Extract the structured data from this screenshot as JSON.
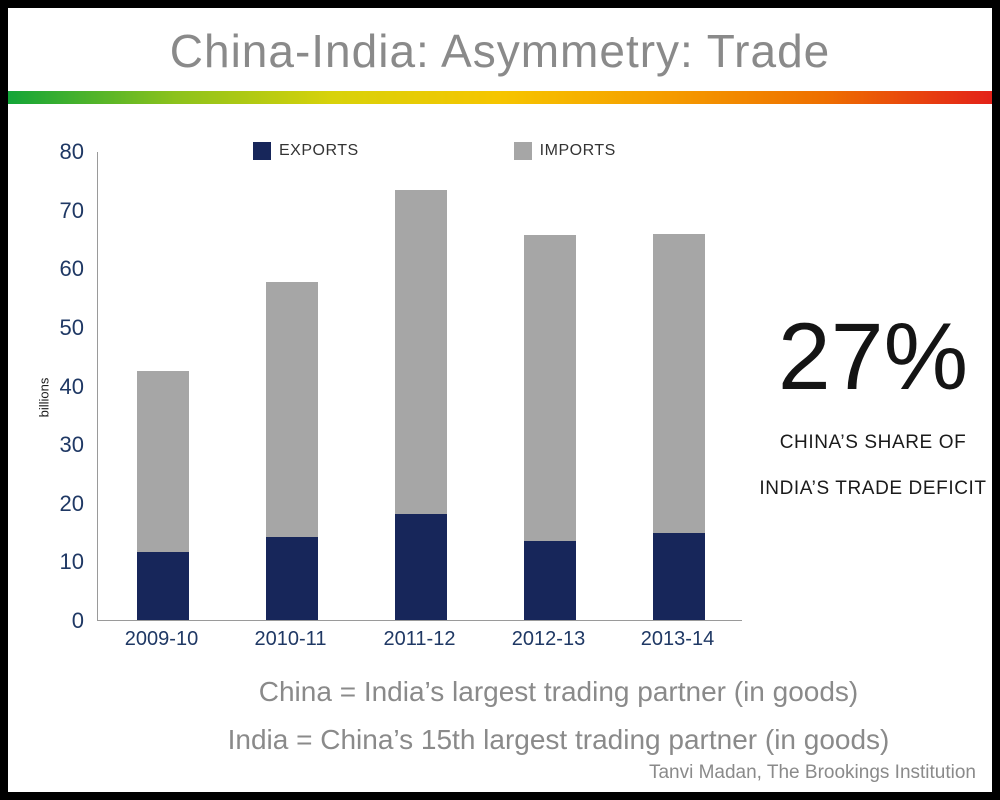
{
  "title": "China-India: Asymmetry: Trade",
  "chart_data": {
    "type": "bar",
    "stacked": true,
    "categories": [
      "2009-10",
      "2010-11",
      "2011-12",
      "2012-13",
      "2013-14"
    ],
    "series": [
      {
        "name": "EXPORTS",
        "values": [
          11.6,
          14.2,
          18.1,
          13.5,
          14.8
        ],
        "color": "#17265a"
      },
      {
        "name": "IMPORTS",
        "values": [
          30.8,
          43.5,
          55.3,
          52.2,
          51.0
        ],
        "color": "#a6a6a6"
      }
    ],
    "title": "",
    "xlabel": "",
    "ylabel": "billions",
    "ylim": [
      0,
      80
    ],
    "ytick_step": 10,
    "grid": false,
    "legend_position": "top"
  },
  "callout": {
    "value": "27%",
    "caption": [
      "CHINA’S SHARE OF",
      "INDIA’S TRADE DEFICIT"
    ]
  },
  "notes": [
    "China = India’s largest trading partner (in goods)",
    "India = China’s 15th largest trading partner (in goods)"
  ],
  "attribution": "Tanvi Madan, The Brookings Institution",
  "colors": {
    "title_text": "#8a8a8a",
    "axis_text": "#1f3864",
    "notes_text": "#8a8a8a",
    "exports_bar": "#17265a",
    "imports_bar": "#a6a6a6",
    "gradient": [
      "#13a538",
      "#8cc21c",
      "#d8d20a",
      "#f6c500",
      "#f59c00",
      "#ee6f00",
      "#e32119"
    ]
  }
}
